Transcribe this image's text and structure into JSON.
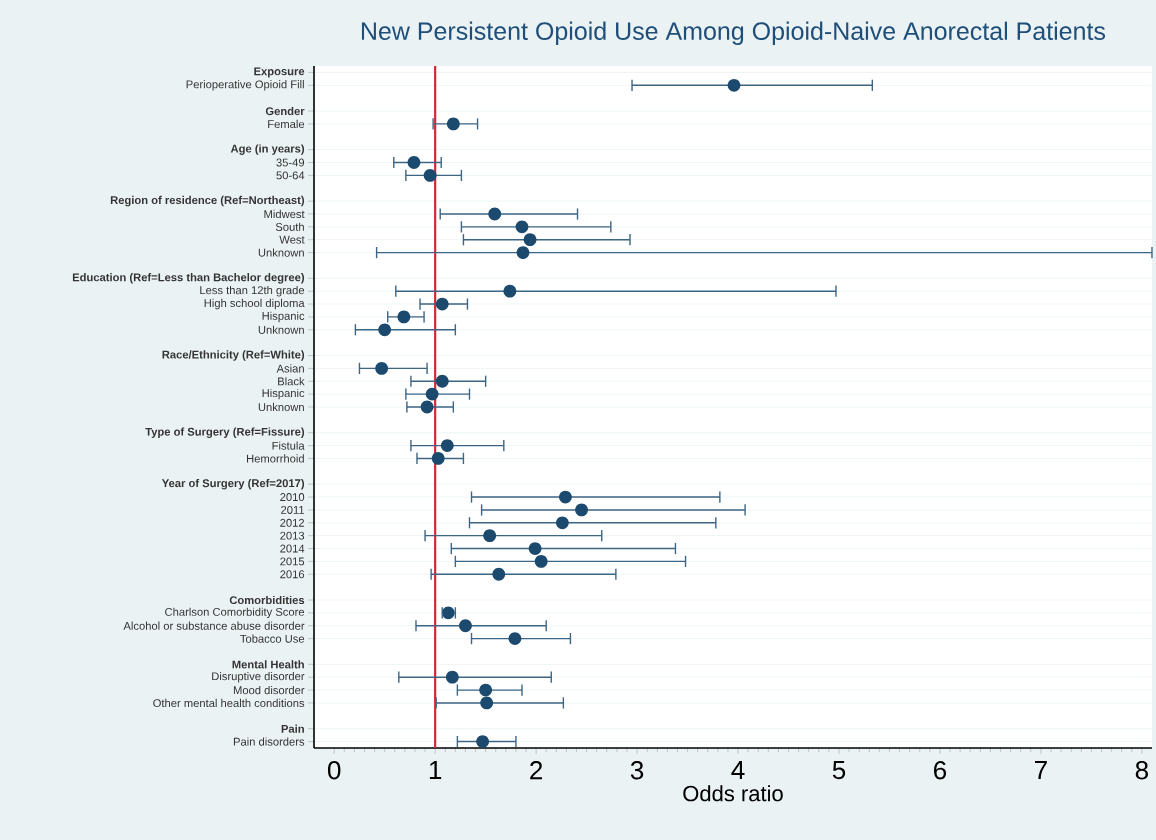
{
  "chart_data": {
    "type": "scatter",
    "orientation": "horizontal",
    "title": "New Persistent Opioid Use Among Opioid-Naive Anorectal Patients",
    "xlabel": "Odds ratio",
    "marker": "circle",
    "grid": "y",
    "color": "#1b4a6e",
    "categories": [
      "Exposure",
      "Perioperative Opioid Fill",
      null,
      "Gender",
      "Female",
      null,
      "Age (in years)",
      "35-49",
      "50-64",
      null,
      "Region of residence (Ref=Northeast)",
      "Midwest",
      "South",
      "West",
      "Unknown",
      null,
      "Education (Ref=Less than Bachelor degree)",
      "Less than 12th grade",
      "High school diploma",
      "Hispanic",
      "Unknown",
      null,
      "Race/Ethnicity (Ref=White)",
      "Asian",
      "Black",
      "Hispanic",
      "Unknown",
      null,
      "Type of Surgery (Ref=Fissure)",
      "Fistula",
      "Hemorrhoid",
      null,
      "Year of Surgery (Ref=2017)",
      "2010",
      "2011",
      "2012",
      "2013",
      "2014",
      "2015",
      "2016",
      null,
      "Comorbidities",
      "Charlson Comorbidity Score",
      "Alcohol or substance abuse disorder",
      "Tobacco Use",
      null,
      "Mental Health",
      "Disruptive disorder",
      "Mood disorder",
      "Other mental health conditions",
      null,
      "Pain",
      "Pain disorders"
    ],
    "values": [
      null,
      3.96,
      null,
      null,
      1.18,
      null,
      null,
      0.79,
      0.95,
      null,
      null,
      1.59,
      1.86,
      1.94,
      1.87,
      null,
      null,
      1.74,
      1.07,
      0.69,
      0.5,
      null,
      null,
      0.47,
      1.07,
      0.97,
      0.92,
      null,
      null,
      1.12,
      1.03,
      null,
      null,
      2.29,
      2.45,
      2.26,
      1.54,
      1.99,
      2.05,
      1.63,
      null,
      null,
      1.13,
      1.3,
      1.79,
      null,
      null,
      1.17,
      1.5,
      1.51,
      null,
      null,
      1.47
    ],
    "errors": [
      null,
      [
        2.95,
        5.33
      ],
      null,
      null,
      [
        0.98,
        1.42
      ],
      null,
      null,
      [
        0.59,
        1.06
      ],
      [
        0.71,
        1.26
      ],
      null,
      null,
      [
        1.05,
        2.41
      ],
      [
        1.26,
        2.74
      ],
      [
        1.28,
        2.93
      ],
      [
        0.42,
        8.1
      ],
      null,
      null,
      [
        0.61,
        4.97
      ],
      [
        0.85,
        1.32
      ],
      [
        0.53,
        0.89
      ],
      [
        0.21,
        1.2
      ],
      null,
      null,
      [
        0.25,
        0.92
      ],
      [
        0.76,
        1.5
      ],
      [
        0.71,
        1.34
      ],
      [
        0.72,
        1.18
      ],
      null,
      null,
      [
        0.76,
        1.68
      ],
      [
        0.82,
        1.28
      ],
      null,
      null,
      [
        1.36,
        3.82
      ],
      [
        1.46,
        4.07
      ],
      [
        1.34,
        3.78
      ],
      [
        0.9,
        2.65
      ],
      [
        1.16,
        3.38
      ],
      [
        1.2,
        3.48
      ],
      [
        0.96,
        2.79
      ],
      null,
      null,
      [
        1.07,
        1.2
      ],
      [
        0.81,
        2.1
      ],
      [
        1.36,
        2.34
      ],
      null,
      null,
      [
        0.64,
        2.15
      ],
      [
        1.22,
        1.86
      ],
      [
        1.01,
        2.27
      ],
      null,
      null,
      [
        1.22,
        1.8
      ]
    ],
    "xlim": [
      -0.2,
      8.1
    ],
    "xticks": [
      0,
      1,
      2,
      3,
      4,
      5,
      6,
      7,
      8
    ],
    "ref_lines": [
      {
        "axis": "x",
        "value": 1,
        "color": "#d62738"
      }
    ]
  }
}
